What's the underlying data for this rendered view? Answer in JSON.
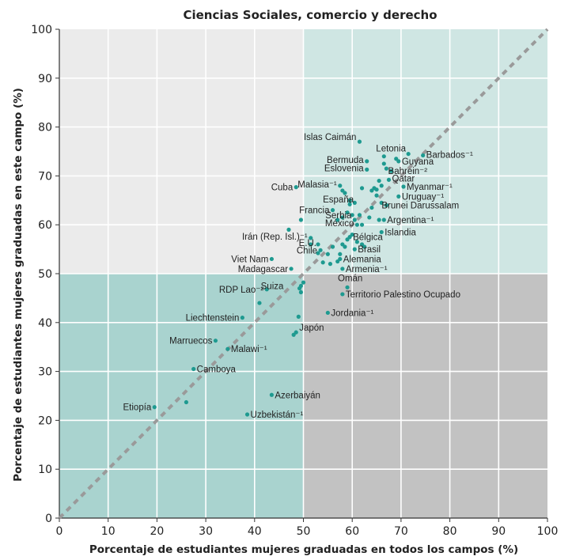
{
  "chart_data": {
    "type": "scatter",
    "title": "Ciencias Sociales, comercio y derecho",
    "xlabel": "Porcentaje de estudiantes mujeres graduadas en todos los campos (%)",
    "ylabel": "Porcentaje de estudiantes mujeres graduadas en este campo (%)",
    "xlim": [
      0,
      100
    ],
    "ylim": [
      0,
      100
    ],
    "x_ticks": [
      "0",
      "10",
      "20",
      "30",
      "40",
      "50",
      "60",
      "70",
      "80",
      "90",
      "100"
    ],
    "y_ticks": [
      "0",
      "10",
      "20",
      "30",
      "40",
      "50",
      "60",
      "70",
      "80",
      "90",
      "100"
    ],
    "grid": true,
    "reference_line": "diagonal y = x, dashed gray",
    "quadrant_split": [
      50,
      50
    ],
    "colors": {
      "top_left": "#ebebeb",
      "top_right": "#cfe6e3",
      "bottom_left": "#a9d3cf",
      "bottom_right": "#c2c2c2",
      "points": "#1e9a90",
      "diagonal": "#9a9a9a"
    },
    "points": [
      {
        "label": "Islas Caimán",
        "x": 61.5,
        "y": 77.0
      },
      {
        "label": "Letonia",
        "x": 66.5,
        "y": 74.0
      },
      {
        "label": "Barbados⁻¹",
        "x": 74.5,
        "y": 74.2
      },
      {
        "label": "Guyana",
        "x": 69.5,
        "y": 73.0
      },
      {
        "label": "Bermuda",
        "x": 63.0,
        "y": 73.0
      },
      {
        "label": "Eslovenia",
        "x": 63.0,
        "y": 71.3
      },
      {
        "label": "Bahrein⁻²",
        "x": 68.0,
        "y": 71.0
      },
      {
        "label": "Qatar",
        "x": 67.5,
        "y": 69.2
      },
      {
        "label": "Malasia⁻¹",
        "x": 57.5,
        "y": 68.0
      },
      {
        "label": "Cuba",
        "x": 48.5,
        "y": 67.7
      },
      {
        "label": "Myanmar⁻¹",
        "x": 70.5,
        "y": 67.8
      },
      {
        "label": "Uruguay⁻¹",
        "x": 69.5,
        "y": 65.8
      },
      {
        "label": "España",
        "x": 59.5,
        "y": 64.2
      },
      {
        "label": "Brunei Darussalam",
        "x": 67.0,
        "y": 64.0
      },
      {
        "label": "Francia",
        "x": 56.0,
        "y": 63.0
      },
      {
        "label": "Serbia",
        "x": 60.0,
        "y": 62.0
      },
      {
        "label": "Argentina⁻¹",
        "x": 66.5,
        "y": 61.0
      },
      {
        "label": "México",
        "x": 61.0,
        "y": 60.0
      },
      {
        "label": "Islandia",
        "x": 66.0,
        "y": 58.5
      },
      {
        "label": "Irán (Rep. Isl.)⁻¹",
        "x": 51.5,
        "y": 57.3
      },
      {
        "label": "Bélgica",
        "x": 59.5,
        "y": 57.5
      },
      {
        "label": "E.U.",
        "x": 53.0,
        "y": 56.0
      },
      {
        "label": "Chile",
        "x": 53.5,
        "y": 54.8
      },
      {
        "label": "Brasil",
        "x": 60.5,
        "y": 55.0
      },
      {
        "label": "Viet Nam",
        "x": 43.5,
        "y": 53.0
      },
      {
        "label": "Alemania",
        "x": 57.5,
        "y": 53.0
      },
      {
        "label": "Madagascar",
        "x": 47.5,
        "y": 51.0
      },
      {
        "label": "Armenia⁻¹",
        "x": 58.0,
        "y": 51.0
      },
      {
        "label": "Suiza",
        "x": 49.5,
        "y": 47.5
      },
      {
        "label": "Omán",
        "x": 59.0,
        "y": 47.2
      },
      {
        "label": "Territorio Palestino Ocupado",
        "x": 58.0,
        "y": 45.8
      },
      {
        "label": "RDP Lao⁻²",
        "x": 42.5,
        "y": 46.8
      },
      {
        "label": "Jordania⁻¹",
        "x": 55.0,
        "y": 42.0
      },
      {
        "label": "Liechtenstein",
        "x": 37.5,
        "y": 41.0
      },
      {
        "label": "Japón",
        "x": 48.5,
        "y": 38.0
      },
      {
        "label": "Marruecos",
        "x": 32.0,
        "y": 36.3
      },
      {
        "label": "Malawi⁻¹",
        "x": 34.5,
        "y": 34.6
      },
      {
        "label": "Camboya",
        "x": 27.5,
        "y": 30.5
      },
      {
        "label": "Azerbaiyán",
        "x": 43.5,
        "y": 25.2
      },
      {
        "label": "Etiopía",
        "x": 19.5,
        "y": 22.7
      },
      {
        "label": "Uzbekistán⁻¹",
        "x": 38.5,
        "y": 21.2
      },
      {
        "label": "",
        "x": 26.0,
        "y": 23.7
      },
      {
        "label": "",
        "x": 41.0,
        "y": 44.0
      },
      {
        "label": "",
        "x": 49.0,
        "y": 41.2
      },
      {
        "label": "",
        "x": 48.0,
        "y": 37.5
      },
      {
        "label": "",
        "x": 49.2,
        "y": 47.0
      },
      {
        "label": "",
        "x": 49.5,
        "y": 46.2
      },
      {
        "label": "",
        "x": 50.0,
        "y": 48.2
      },
      {
        "label": "",
        "x": 47.0,
        "y": 59.0
      },
      {
        "label": "",
        "x": 49.5,
        "y": 61.0
      },
      {
        "label": "",
        "x": 51.5,
        "y": 56.0
      },
      {
        "label": "",
        "x": 53.0,
        "y": 54.2
      },
      {
        "label": "",
        "x": 54.0,
        "y": 52.3
      },
      {
        "label": "",
        "x": 55.0,
        "y": 54.0
      },
      {
        "label": "",
        "x": 55.5,
        "y": 52.0
      },
      {
        "label": "",
        "x": 56.0,
        "y": 55.5
      },
      {
        "label": "",
        "x": 57.0,
        "y": 52.5
      },
      {
        "label": "",
        "x": 57.5,
        "y": 54.0
      },
      {
        "label": "",
        "x": 58.0,
        "y": 56.0
      },
      {
        "label": "",
        "x": 58.5,
        "y": 55.5
      },
      {
        "label": "",
        "x": 59.0,
        "y": 57.0
      },
      {
        "label": "",
        "x": 60.0,
        "y": 58.0
      },
      {
        "label": "",
        "x": 61.0,
        "y": 56.5
      },
      {
        "label": "",
        "x": 62.0,
        "y": 56.0
      },
      {
        "label": "",
        "x": 62.5,
        "y": 55.5
      },
      {
        "label": "",
        "x": 57.0,
        "y": 61.0
      },
      {
        "label": "",
        "x": 58.0,
        "y": 61.5
      },
      {
        "label": "",
        "x": 59.0,
        "y": 62.5
      },
      {
        "label": "",
        "x": 60.5,
        "y": 61.0
      },
      {
        "label": "",
        "x": 61.5,
        "y": 62.0
      },
      {
        "label": "",
        "x": 62.0,
        "y": 60.0
      },
      {
        "label": "",
        "x": 63.5,
        "y": 61.5
      },
      {
        "label": "",
        "x": 64.0,
        "y": 63.5
      },
      {
        "label": "",
        "x": 65.5,
        "y": 61.0
      },
      {
        "label": "",
        "x": 66.0,
        "y": 64.5
      },
      {
        "label": "",
        "x": 65.0,
        "y": 66.0
      },
      {
        "label": "",
        "x": 66.0,
        "y": 68.0
      },
      {
        "label": "",
        "x": 64.0,
        "y": 67.0
      },
      {
        "label": "",
        "x": 64.5,
        "y": 67.5
      },
      {
        "label": "",
        "x": 65.0,
        "y": 67.2
      },
      {
        "label": "",
        "x": 62.0,
        "y": 67.5
      },
      {
        "label": "",
        "x": 58.0,
        "y": 67.0
      },
      {
        "label": "",
        "x": 58.5,
        "y": 66.5
      },
      {
        "label": "",
        "x": 59.5,
        "y": 65.0
      },
      {
        "label": "",
        "x": 60.5,
        "y": 64.5
      },
      {
        "label": "",
        "x": 65.5,
        "y": 69.0
      },
      {
        "label": "",
        "x": 67.0,
        "y": 71.5
      },
      {
        "label": "",
        "x": 66.5,
        "y": 72.5
      },
      {
        "label": "",
        "x": 69.0,
        "y": 73.5
      },
      {
        "label": "",
        "x": 71.5,
        "y": 74.5
      }
    ]
  }
}
